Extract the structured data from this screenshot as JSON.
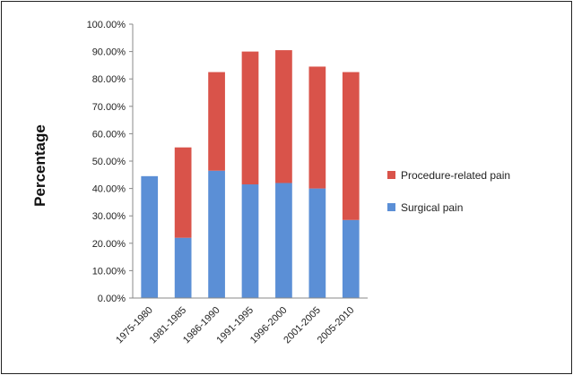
{
  "chart_data": {
    "type": "bar",
    "stacked": true,
    "categories": [
      "1975-1980",
      "1981-1985",
      "1986-1990",
      "1991-1995",
      "1996-2000",
      "2001-2005",
      "2005-2010"
    ],
    "series": [
      {
        "name": "Surgical pain",
        "color": "#5b8fd6",
        "values": [
          44.5,
          22.0,
          46.5,
          41.5,
          42.0,
          40.0,
          28.5
        ]
      },
      {
        "name": "Procedure-related pain",
        "color": "#d9534a",
        "values": [
          0.0,
          33.0,
          36.0,
          48.5,
          48.5,
          44.5,
          54.0
        ]
      }
    ],
    "ylabel": "Percentage",
    "xlabel": "",
    "title": "",
    "ylim": [
      0,
      100
    ],
    "yticks": [
      "0.00%",
      "10.00%",
      "20.00%",
      "30.00%",
      "40.00%",
      "50.00%",
      "60.00%",
      "70.00%",
      "80.00%",
      "90.00%",
      "100.00%"
    ],
    "legend_order": [
      "Procedure-related pain",
      "Surgical pain"
    ],
    "legend": "right",
    "grid": false
  }
}
